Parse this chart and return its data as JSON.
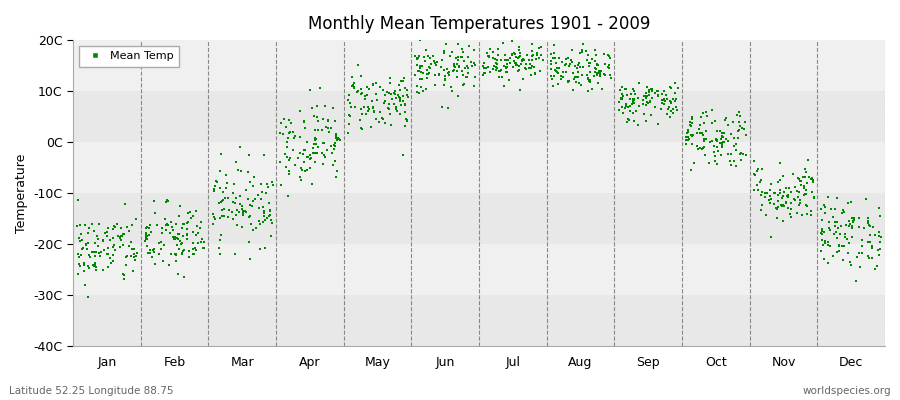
{
  "title": "Monthly Mean Temperatures 1901 - 2009",
  "ylabel": "Temperature",
  "ylim": [
    -40,
    20
  ],
  "yticks": [
    -40,
    -30,
    -20,
    -10,
    0,
    10,
    20
  ],
  "ytick_labels": [
    "-40C",
    "-30C",
    "-20C",
    "-10C",
    "0C",
    "10C",
    "20C"
  ],
  "months": [
    "Jan",
    "Feb",
    "Mar",
    "Apr",
    "May",
    "Jun",
    "Jul",
    "Aug",
    "Sep",
    "Oct",
    "Nov",
    "Dec"
  ],
  "subtitle_left": "Latitude 52.25 Longitude 88.75",
  "subtitle_right": "worldspecies.org",
  "marker_color": "#008800",
  "marker_size": 4,
  "legend_label": "Mean Temp",
  "band_color_dark": "#e8e8e8",
  "band_color_light": "#f0f0f0",
  "background_color": "#f0f0f0",
  "monthly_means": [
    -21,
    -19,
    -12,
    0,
    8,
    14,
    16,
    14,
    8,
    1,
    -10,
    -18
  ],
  "monthly_stds": [
    3.5,
    3.5,
    4.0,
    4.0,
    3.0,
    2.5,
    2.0,
    2.0,
    2.0,
    3.0,
    3.0,
    3.5
  ],
  "n_years": 109
}
